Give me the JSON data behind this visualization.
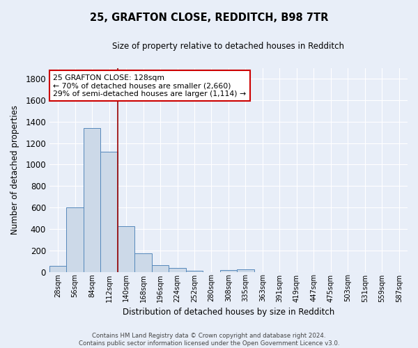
{
  "title1": "25, GRAFTON CLOSE, REDDITCH, B98 7TR",
  "title2": "Size of property relative to detached houses in Redditch",
  "xlabel": "Distribution of detached houses by size in Redditch",
  "ylabel": "Number of detached properties",
  "categories": [
    "28sqm",
    "56sqm",
    "84sqm",
    "112sqm",
    "140sqm",
    "168sqm",
    "196sqm",
    "224sqm",
    "252sqm",
    "280sqm",
    "308sqm",
    "335sqm",
    "363sqm",
    "391sqm",
    "419sqm",
    "447sqm",
    "475sqm",
    "503sqm",
    "531sqm",
    "559sqm",
    "587sqm"
  ],
  "values": [
    58,
    600,
    1340,
    1120,
    425,
    172,
    60,
    38,
    12,
    0,
    18,
    20,
    0,
    0,
    0,
    0,
    0,
    0,
    0,
    0,
    0
  ],
  "bar_color": "#ccd9e8",
  "bar_edge_color": "#5588bb",
  "bg_color": "#e8eef8",
  "grid_color": "#ffffff",
  "vline_color": "#990000",
  "annotation_line1": "25 GRAFTON CLOSE: 128sqm",
  "annotation_line2": "← 70% of detached houses are smaller (2,660)",
  "annotation_line3": "29% of semi-detached houses are larger (1,114) →",
  "annotation_box_color": "#ffffff",
  "annotation_box_edge": "#cc0000",
  "ylim": [
    0,
    1900
  ],
  "yticks": [
    0,
    200,
    400,
    600,
    800,
    1000,
    1200,
    1400,
    1600,
    1800
  ],
  "footer": "Contains HM Land Registry data © Crown copyright and database right 2024.\nContains public sector information licensed under the Open Government Licence v3.0."
}
